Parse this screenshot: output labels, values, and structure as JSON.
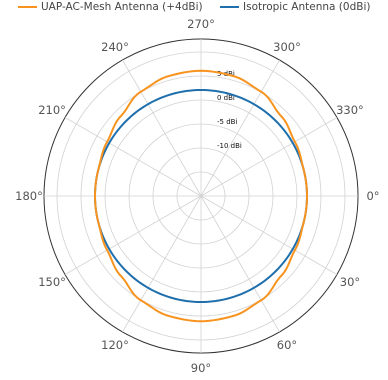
{
  "chart_data": {
    "type": "polar-line",
    "title": "",
    "radial_axis": {
      "ring_labels": [
        "5 dBi",
        "0 dBi",
        "-5 dBi",
        "-10 dBi"
      ]
    },
    "angular_axis": {
      "tick_labels": [
        "0°",
        "30°",
        "60°",
        "90°",
        "120°",
        "150°",
        "180°",
        "210°",
        "240°",
        "270°",
        "300°",
        "330°"
      ],
      "ticks_deg": [
        0,
        30,
        60,
        90,
        120,
        150,
        180,
        210,
        240,
        270,
        300,
        330
      ],
      "direction": "clockwise",
      "zero_location": "right"
    },
    "grid": true,
    "legend_position": "top",
    "series": [
      {
        "name": "UAP-AC-Mesh Antenna (+4dBi)",
        "color": "#f7931e",
        "angles_deg": [
          0,
          15,
          30,
          45,
          60,
          75,
          90,
          105,
          120,
          135,
          150,
          165,
          180,
          195,
          210,
          225,
          240,
          255,
          270,
          285,
          300,
          315,
          330,
          345
        ],
        "gain_dbi": [
          0,
          0,
          0.5,
          1.5,
          3,
          3.8,
          4,
          3.8,
          3,
          1.5,
          0.5,
          0,
          0,
          0,
          0.5,
          1.5,
          3,
          3.8,
          4,
          3.8,
          3,
          1.5,
          0.5,
          0
        ]
      },
      {
        "name": "Isotropic Antenna (0dBi)",
        "color": "#1f6fad",
        "angles_deg": [
          0,
          15,
          30,
          45,
          60,
          75,
          90,
          105,
          120,
          135,
          150,
          165,
          180,
          195,
          210,
          225,
          240,
          255,
          270,
          285,
          300,
          315,
          330,
          345
        ],
        "gain_dbi": [
          0,
          0,
          0,
          0,
          0,
          0,
          0,
          0,
          0,
          0,
          0,
          0,
          0,
          0,
          0,
          0,
          0,
          0,
          0,
          0,
          0,
          0,
          0,
          0
        ]
      }
    ]
  }
}
